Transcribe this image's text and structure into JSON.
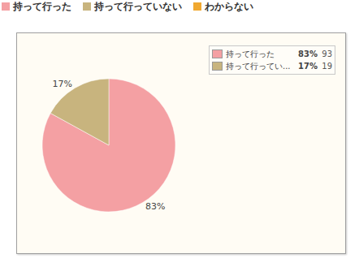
{
  "chart_data": {
    "type": "pie",
    "categories": [
      "持って行った",
      "持って行っていない",
      "わからない"
    ],
    "colors": [
      "#f4a0a3",
      "#c8b47e",
      "#f0a830"
    ],
    "values": [
      83,
      17,
      null
    ],
    "value_labels": [
      "83%",
      "17%",
      null
    ],
    "legend_labels": [
      "持って行った",
      "持って行ってい...",
      null
    ],
    "counts": [
      93,
      19,
      null
    ],
    "legend": "top"
  }
}
